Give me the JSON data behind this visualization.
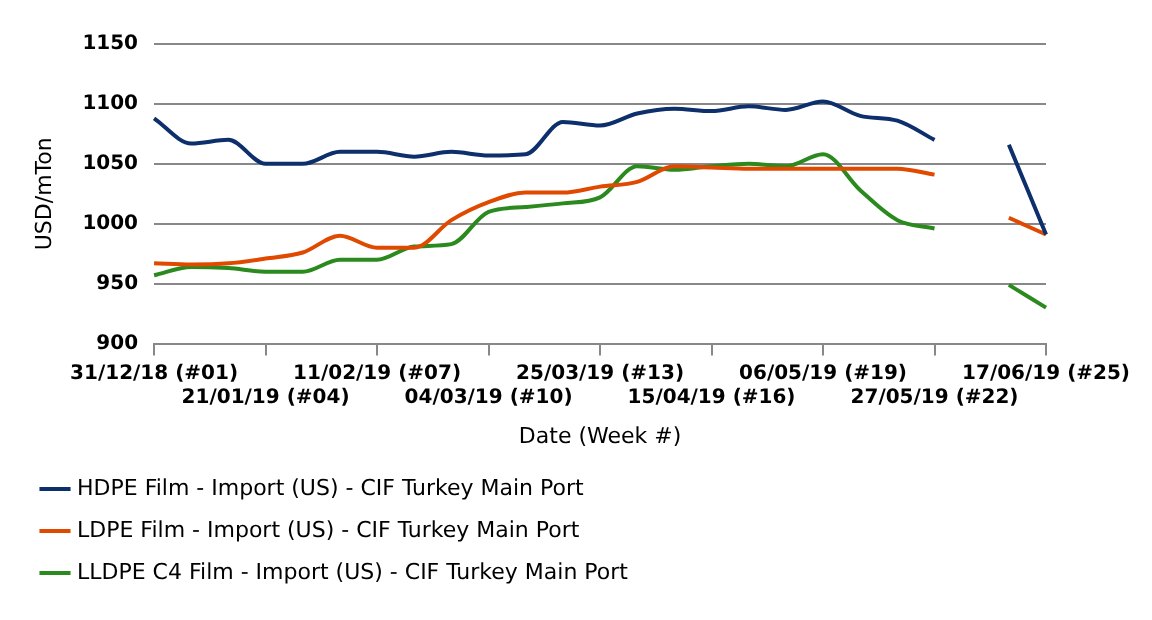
{
  "chart_data": {
    "type": "line",
    "xlabel": "Date (Week #)",
    "ylabel": "USD/mTon",
    "categories": [
      "31/12/18 (#01)",
      null,
      null,
      "21/01/19 (#04)",
      null,
      null,
      "11/02/19 (#07)",
      null,
      null,
      "04/03/19 (#10)",
      null,
      null,
      "25/03/19 (#13)",
      null,
      null,
      "15/04/19 (#16)",
      null,
      null,
      "06/05/19 (#19)",
      null,
      null,
      "27/05/19 (#22)",
      null,
      null,
      "17/06/19 (#25)"
    ],
    "series": [
      {
        "name": "HDPE Film - Import (US) - CIF Turkey Main Port",
        "color": "#0d2f6b",
        "values": [
          1088,
          1067,
          1070,
          1050,
          1050,
          1060,
          1060,
          1056,
          1060,
          1057,
          1058,
          1085,
          1082,
          1092,
          1096,
          1094,
          1098,
          1095,
          1102,
          1090,
          1086,
          1070,
          null,
          1066,
          991
        ]
      },
      {
        "name": "LDPE Film - Import (US) - CIF Turkey Main Port",
        "color": "#e04a00",
        "values": [
          967,
          966,
          967,
          971,
          976,
          990,
          980,
          980,
          1003,
          1018,
          1026,
          1026,
          1031,
          1035,
          1048,
          1047,
          1046,
          1046,
          1046,
          1046,
          1046,
          1041,
          null,
          1005,
          991
        ]
      },
      {
        "name": "LLDPE C4 Film - Import (US) - CIF Turkey Main Port",
        "color": "#2a8a1e",
        "values": [
          957,
          964,
          963,
          960,
          960,
          970,
          970,
          981,
          983,
          1010,
          1014,
          1017,
          1022,
          1048,
          1045,
          1048,
          1050,
          1048,
          1058,
          1028,
          1003,
          996,
          null,
          949,
          930
        ]
      }
    ],
    "ylim": [
      900,
      1150
    ],
    "yticks": [
      900,
      950,
      1000,
      1050,
      1100,
      1150
    ],
    "grid": "y",
    "legend": "bottom",
    "marker": "none",
    "line_style": "solid"
  }
}
